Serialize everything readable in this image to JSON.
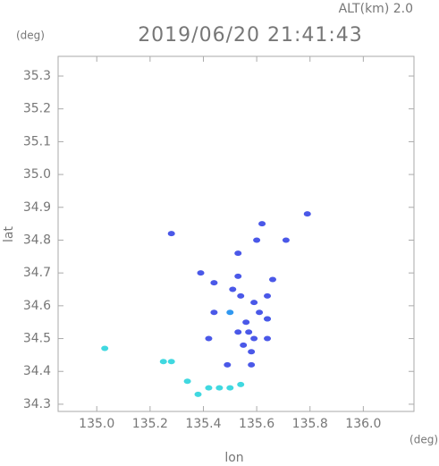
{
  "chart_data": {
    "type": "scatter",
    "header": "ALT(km) 2.0",
    "y_unit": "(deg)",
    "title": "2019/06/20 21:41:43",
    "ylabel": "lat",
    "xlabel": "lon",
    "x_unit": "(deg)",
    "xlim": [
      134.855,
      136.19
    ],
    "ylim": [
      34.278,
      35.36
    ],
    "xticks": [
      {
        "value": 135,
        "label": "135.0"
      },
      135.2,
      135.4,
      135.6,
      135.8,
      {
        "value": 136,
        "label": "136.0"
      }
    ],
    "yticks": [
      34.3,
      34.4,
      34.5,
      34.6,
      34.7,
      34.8,
      34.9,
      {
        "value": 35,
        "label": "35.0"
      },
      35.1,
      35.2,
      35.3
    ],
    "series": [
      {
        "color": "#40d8e0",
        "x": [
          135.03,
          135.25,
          135.28,
          135.34,
          135.38,
          135.42,
          135.46,
          135.5,
          135.54
        ],
        "values": [
          34.47,
          34.43,
          34.43,
          34.37,
          34.33,
          34.35,
          34.35,
          34.35,
          34.36
        ]
      },
      {
        "color": "#3098f0",
        "x": [
          135.5,
          135.64
        ],
        "values": [
          34.58,
          34.56
        ]
      },
      {
        "color": "#4a58e8",
        "x": [
          135.49,
          135.58,
          135.55,
          135.59,
          135.64,
          135.56,
          135.61,
          135.64,
          135.64,
          135.66,
          135.59,
          135.54,
          135.51,
          135.44,
          135.42,
          135.44,
          135.39,
          135.53,
          135.62,
          135.6,
          135.71,
          135.79,
          135.28,
          135.53,
          135.57,
          135.53,
          135.58
        ],
        "values": [
          34.42,
          34.42,
          34.48,
          34.5,
          34.5,
          34.55,
          34.58,
          34.56,
          34.63,
          34.68,
          34.61,
          34.63,
          34.65,
          34.58,
          34.5,
          34.67,
          34.7,
          34.69,
          34.85,
          34.8,
          34.8,
          34.88,
          34.82,
          34.76,
          34.52,
          34.52,
          34.46
        ]
      }
    ]
  }
}
